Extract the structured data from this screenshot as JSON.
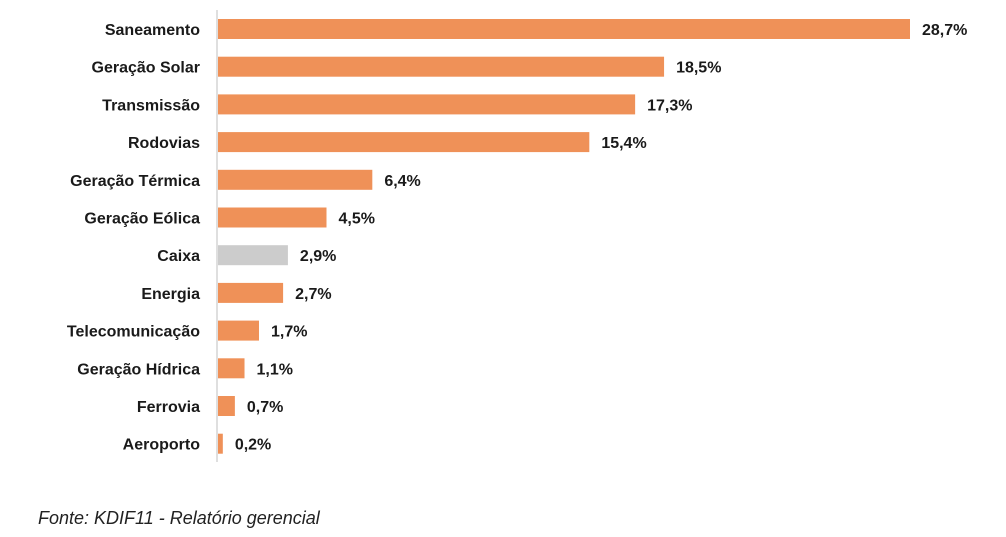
{
  "chart_data": {
    "type": "bar",
    "orientation": "horizontal",
    "categories": [
      "Saneamento",
      "Geração Solar",
      "Transmissão",
      "Rodovias",
      "Geração Térmica",
      "Geração Eólica",
      "Caixa",
      "Energia",
      "Telecomunicação",
      "Geração Hídrica",
      "Ferrovia",
      "Aeroporto"
    ],
    "values": [
      28.7,
      18.5,
      17.3,
      15.4,
      6.4,
      4.5,
      2.9,
      2.7,
      1.7,
      1.1,
      0.7,
      0.2
    ],
    "value_labels": [
      "28,7%",
      "18,5%",
      "17,3%",
      "15,4%",
      "6,4%",
      "4,5%",
      "2,9%",
      "2,7%",
      "1,7%",
      "1,1%",
      "0,7%",
      "0,2%"
    ],
    "bar_colors": [
      "#ef9158",
      "#ef9158",
      "#ef9158",
      "#ef9158",
      "#ef9158",
      "#ef9158",
      "#cccccc",
      "#ef9158",
      "#ef9158",
      "#ef9158",
      "#ef9158",
      "#ef9158"
    ],
    "xlim": [
      0,
      28.7
    ],
    "grid": false,
    "legend": "none"
  },
  "source_note": "Fonte: KDIF11 - Relatório gerencial",
  "colors": {
    "primary_bar": "#ef9158",
    "highlight_bar": "#cccccc",
    "axis": "#bfbfbf"
  }
}
